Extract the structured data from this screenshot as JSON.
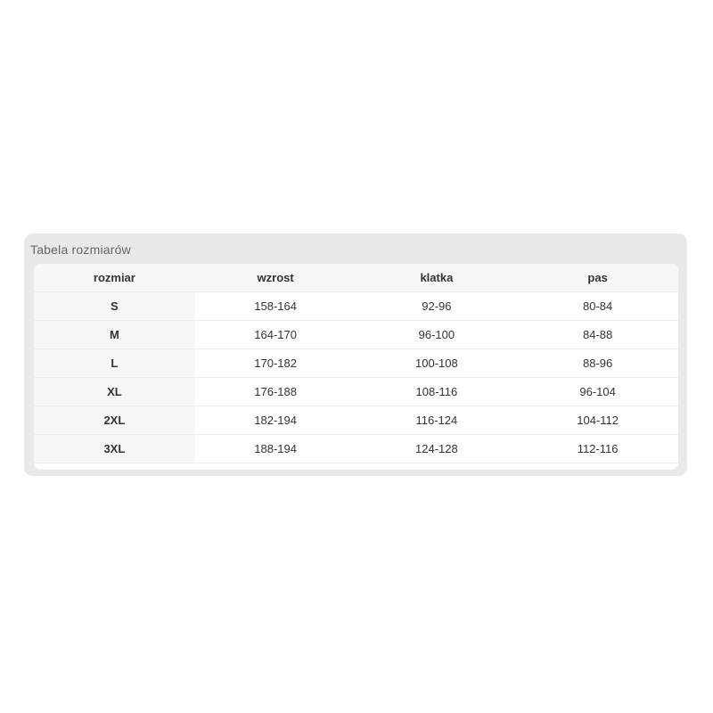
{
  "panel": {
    "title": "Tabela rozmiarów"
  },
  "table": {
    "columns": [
      "rozmiar",
      "wzrost",
      "klatka",
      "pas"
    ],
    "rows": [
      [
        "S",
        "158-164",
        "92-96",
        "80-84"
      ],
      [
        "M",
        "164-170",
        "96-100",
        "84-88"
      ],
      [
        "L",
        "170-182",
        "100-108",
        "88-96"
      ],
      [
        "XL",
        "176-188",
        "108-116",
        "96-104"
      ],
      [
        "2XL",
        "182-194",
        "116-124",
        "104-112"
      ],
      [
        "3XL",
        "188-194",
        "124-128",
        "112-116"
      ]
    ]
  },
  "colors": {
    "page_background": "#ffffff",
    "panel_background": "#e9e9e9",
    "card_background": "#ffffff",
    "header_background": "#f7f7f7",
    "divider": "#ececec",
    "title_text": "#666666",
    "cell_text": "#333333"
  },
  "chart_data": {
    "type": "table",
    "title": "Tabela rozmiarów",
    "columns": [
      "rozmiar",
      "wzrost",
      "klatka",
      "pas"
    ],
    "rows": [
      [
        "S",
        "158-164",
        "92-96",
        "80-84"
      ],
      [
        "M",
        "164-170",
        "96-100",
        "84-88"
      ],
      [
        "L",
        "170-182",
        "100-108",
        "88-96"
      ],
      [
        "XL",
        "176-188",
        "108-116",
        "96-104"
      ],
      [
        "2XL",
        "182-194",
        "116-124",
        "104-112"
      ],
      [
        "3XL",
        "188-194",
        "124-128",
        "112-116"
      ]
    ]
  }
}
